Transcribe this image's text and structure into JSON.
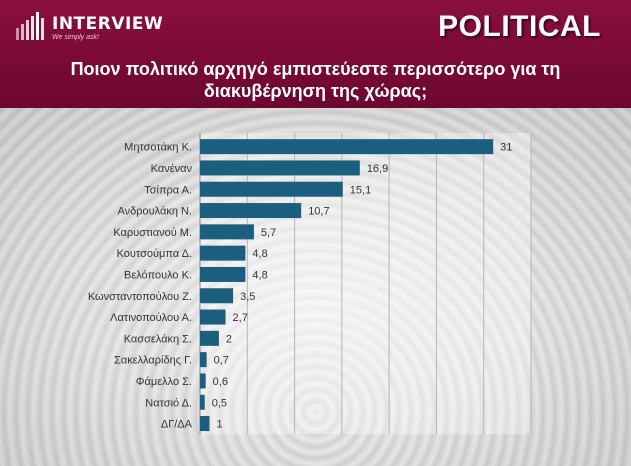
{
  "brand": {
    "name": "INTERVIEW",
    "tagline": "We simply ask!",
    "badge": "POLITICAL"
  },
  "question": "Ποιον πολιτικό αρχηγό εμπιστεύεστε περισσότερο για τη διακυβέρνηση της χώρας;",
  "colors": {
    "header": "#7a0a36",
    "bar": "#1c5e7e"
  },
  "chart_data": {
    "type": "bar",
    "orientation": "horizontal",
    "title": "Ποιον πολιτικό αρχηγό εμπιστεύεστε περισσότερο για τη διακυβέρνηση της χώρας;",
    "xlabel": "",
    "ylabel": "",
    "xlim": [
      0,
      35
    ],
    "grid": true,
    "categories": [
      "Μητσοτάκη Κ.",
      "Κανέναν",
      "Τσίπρα Α.",
      "Ανδρουλάκη Ν.",
      "Καρυστιανού Μ.",
      "Κουτσούμπα Δ.",
      "Βελόπουλο Κ.",
      "Κωνσταντοπούλου Ζ.",
      "Λατινοπούλου Α.",
      "Κασσελάκη Σ.",
      "Σακελλαρίδης Γ.",
      "Φάμελλο Σ.",
      "Νατσιό Δ.",
      "ΔΓ/ΔΑ"
    ],
    "values": [
      31,
      16.9,
      15.1,
      10.7,
      5.7,
      4.8,
      4.8,
      3.5,
      2.7,
      2,
      0.7,
      0.6,
      0.5,
      1
    ],
    "value_labels": [
      "31",
      "16,9",
      "15,1",
      "10,7",
      "5,7",
      "4,8",
      "4,8",
      "3,5",
      "2,7",
      "2",
      "0,7",
      "0,6",
      "0,5",
      "1"
    ]
  }
}
